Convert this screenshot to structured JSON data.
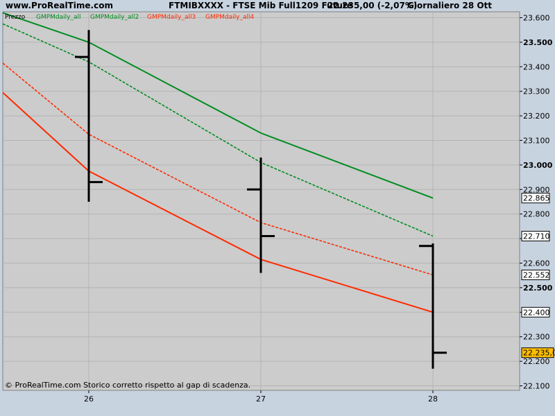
{
  "header": {
    "site_url": "www.ProRealTime.com",
    "title": "FTMIBXXXX - FTSE Mib Full1209 Future",
    "price": "22.235,00 (-2,07%)",
    "period": "Giornaliero  28 Ott"
  },
  "footer": {
    "note": "© ProRealTime.com  Storico corretto rispetto al gap di scadenza."
  },
  "colors": {
    "background": "#c8d3e0",
    "plot_bg": "#cccccc",
    "green": "#008c20",
    "red": "#ff2a00",
    "bars": "#000000",
    "last_price_box": "#ffbf00"
  },
  "chart_data": {
    "type": "line",
    "legend_title": "Prezzo",
    "categories": [
      "26",
      "27",
      "28"
    ],
    "ylim": [
      22100,
      23650
    ],
    "y_ticks": [
      22100,
      22200,
      22300,
      22400,
      22500,
      22600,
      22700,
      22800,
      22900,
      23000,
      23100,
      23200,
      23300,
      23400,
      23500,
      23600
    ],
    "y_tick_labels": [
      "22.100",
      "22.200",
      "22.300",
      "22.400",
      "22.500",
      "22.600",
      "22.700",
      "22.800",
      "22.900",
      "23.000",
      "23.100",
      "23.200",
      "23.300",
      "23.400",
      "23.500",
      "23.600"
    ],
    "ohlc": [
      {
        "x": "26",
        "open": 23440,
        "high": 23550,
        "low": 22850,
        "close": 22930
      },
      {
        "x": "27",
        "open": 22900,
        "high": 23030,
        "low": 22560,
        "close": 22710
      },
      {
        "x": "28",
        "open": 22670,
        "high": 22680,
        "low": 22170,
        "close": 22235
      }
    ],
    "series": [
      {
        "name": "GMPMdaily_all",
        "color": "#008c20",
        "dash": false,
        "x_start": 25.5,
        "y_start": 23620,
        "values": [
          23500,
          23130,
          22865
        ],
        "end_label": "22.865"
      },
      {
        "name": "GMPMdaily_all2",
        "color": "#008c20",
        "dash": true,
        "x_start": 25.5,
        "y_start": 23575,
        "values": [
          23420,
          23010,
          22710
        ],
        "end_label": "22.710"
      },
      {
        "name": "GMPMdaily_all3",
        "color": "#ff2a00",
        "dash": true,
        "x_start": 25.5,
        "y_start": 23415,
        "values": [
          23125,
          22765,
          22552
        ],
        "end_label": "22.552"
      },
      {
        "name": "GMPMdaily_all4",
        "color": "#ff2a00",
        "dash": false,
        "x_start": 25.5,
        "y_start": 23295,
        "values": [
          22975,
          22615,
          22400
        ],
        "end_label": "22.400"
      }
    ],
    "last_price_label": "22.235,0",
    "grid": true
  }
}
